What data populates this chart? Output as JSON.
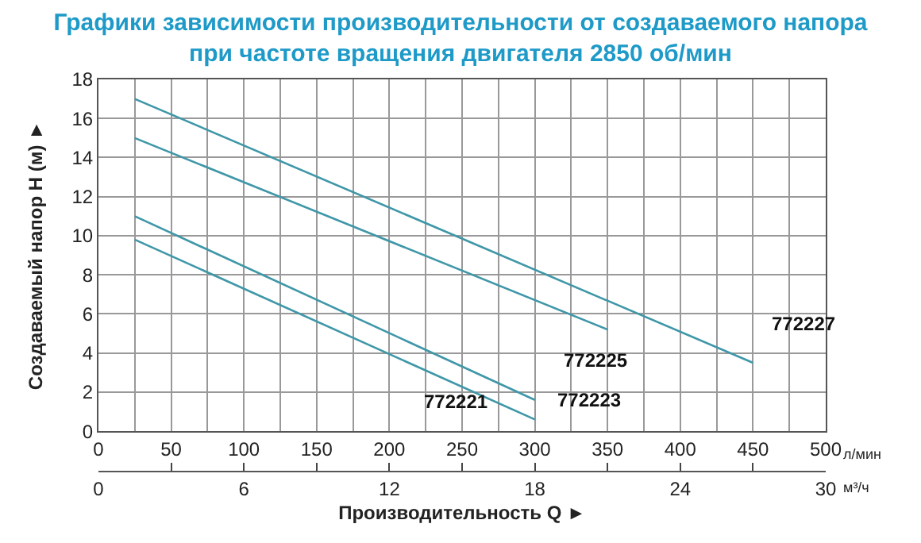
{
  "chart_data": {
    "type": "line",
    "title": "Графики зависимости производительности от создаваемого напора\nпри частоте вращения двигателя 2850 об/мин",
    "ylabel": "Создаваемый напор H (м) ►",
    "x2label": "Производительность Q ►",
    "annotations": [
      "л/мин",
      "м³/ч"
    ],
    "series": [
      {
        "name": "772227",
        "color": "#3f97a8",
        "x": [
          25,
          450
        ],
        "values": [
          17,
          3.5
        ]
      },
      {
        "name": "772225",
        "color": "#3f97a8",
        "x": [
          25,
          350
        ],
        "values": [
          15,
          5.2
        ]
      },
      {
        "name": "772223",
        "color": "#3f97a8",
        "x": [
          25,
          300
        ],
        "values": [
          11,
          1.6
        ]
      },
      {
        "name": "772221",
        "color": "#3f97a8",
        "x": [
          25,
          300
        ],
        "values": [
          9.8,
          0.6
        ]
      }
    ],
    "xlim": [
      0,
      500
    ],
    "xticks": [
      0,
      {
        "value": 25,
        "label": null
      },
      50,
      {
        "value": 75,
        "label": null
      },
      100,
      {
        "value": 125,
        "label": null
      },
      150,
      {
        "value": 175,
        "label": null
      },
      200,
      {
        "value": 225,
        "label": null
      },
      250,
      {
        "value": 275,
        "label": null
      },
      300,
      {
        "value": 325,
        "label": null
      },
      350,
      {
        "value": 375,
        "label": null
      },
      400,
      {
        "value": 425,
        "label": null
      },
      450,
      {
        "value": 475,
        "label": null
      },
      500
    ],
    "x2lim": [
      0,
      30
    ],
    "x2ticks": [
      0,
      {
        "value": 3,
        "label": null
      },
      6,
      {
        "value": 9,
        "label": null
      },
      12,
      {
        "value": 15,
        "label": null
      },
      18,
      {
        "value": 21,
        "label": null
      },
      24,
      {
        "value": 27,
        "label": null
      },
      30
    ],
    "ylim": [
      0,
      18
    ],
    "yticks": [
      0,
      2,
      4,
      6,
      8,
      10,
      12,
      14,
      16,
      18
    ],
    "grid": true,
    "legend": false,
    "marker": "none",
    "line_style": "solid"
  }
}
